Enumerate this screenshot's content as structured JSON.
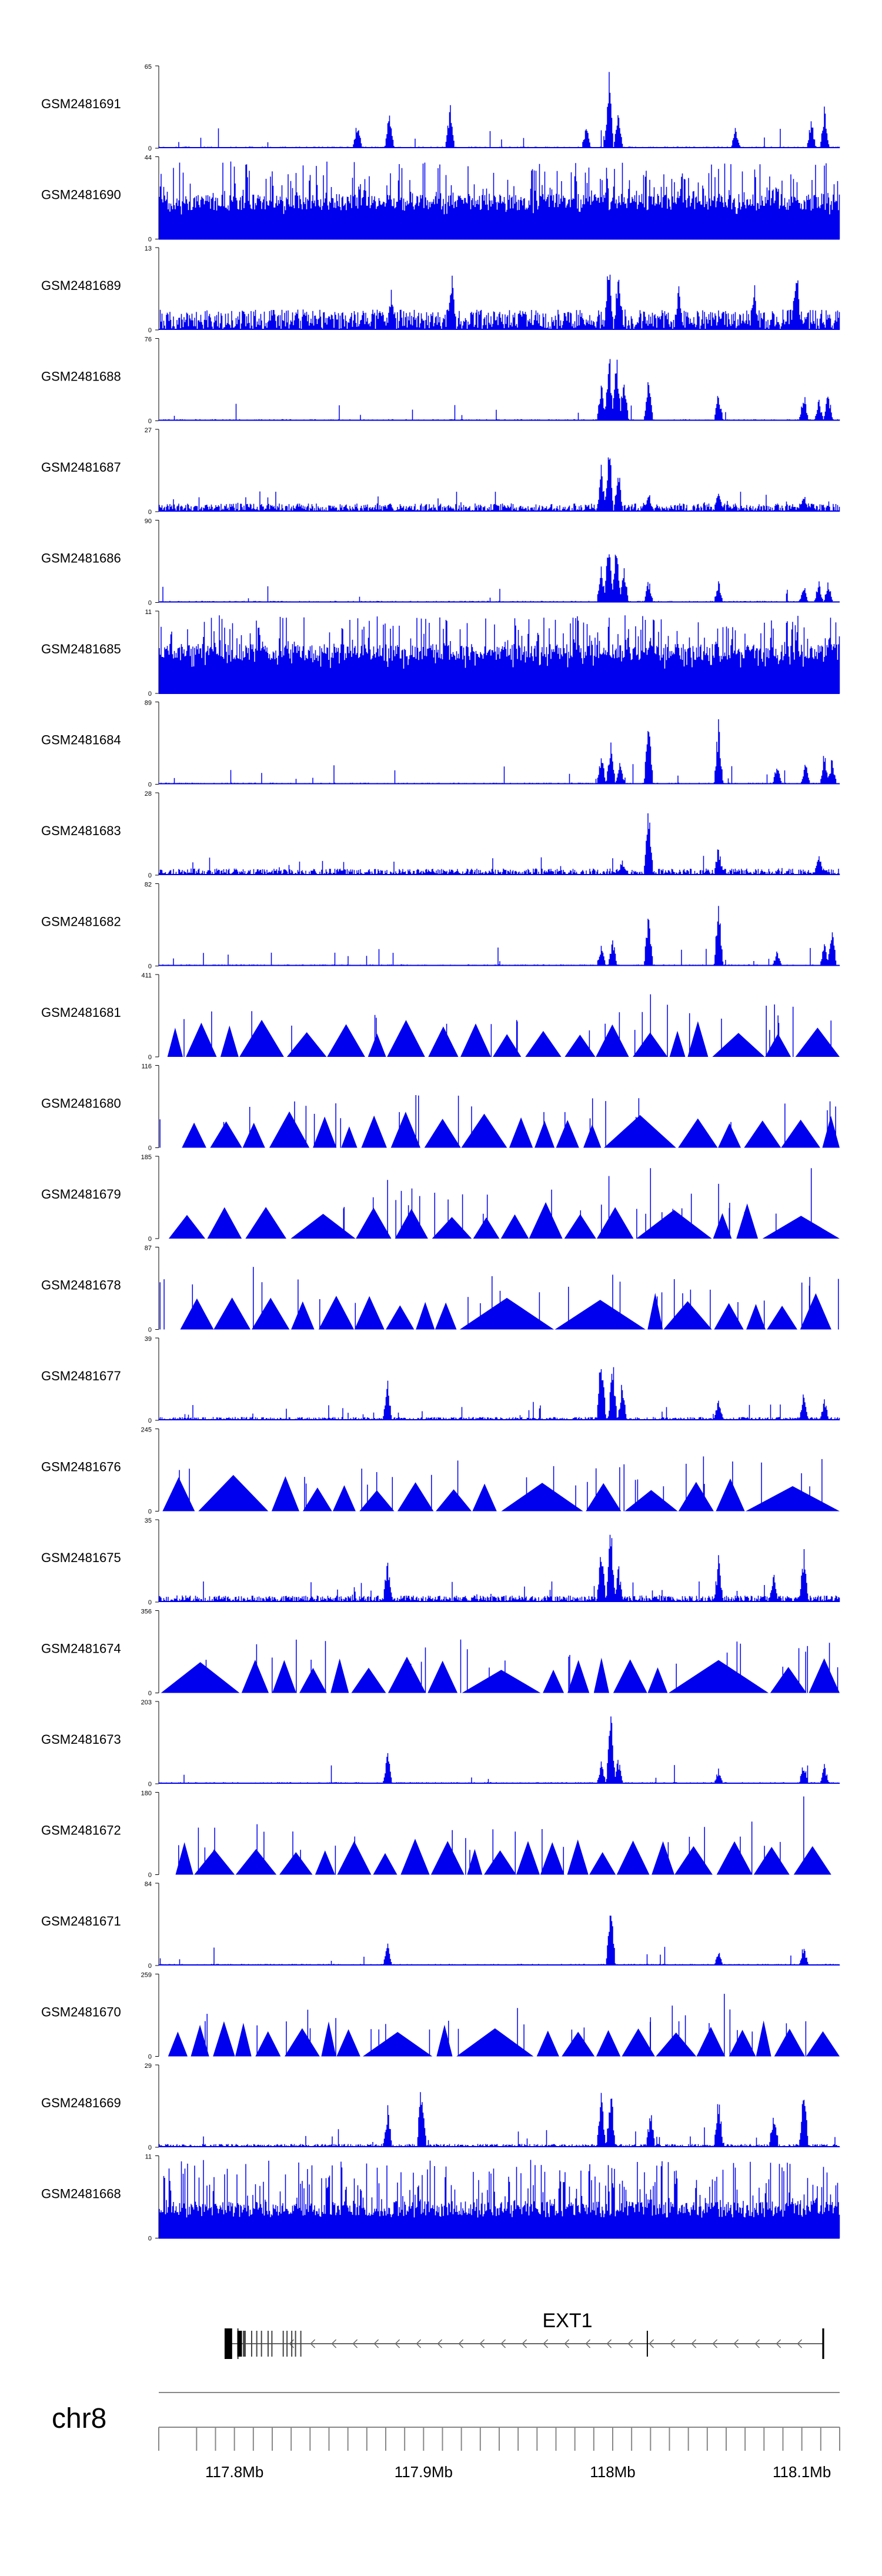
{
  "chart_data": {
    "type": "area",
    "title": "",
    "colors": {
      "signal": "#0000ee",
      "axis": "#000000",
      "gene": "#000000",
      "ruler": "#888888"
    },
    "region": {
      "chromosome": "chr8",
      "start_mb": 117.76,
      "end_mb": 118.12
    },
    "tracks": [
      {
        "name": "GSM2481691",
        "ymin": "0",
        "ymax": "65",
        "style": "dense",
        "density": 0.35,
        "base": 0.02,
        "seed": 11,
        "peaks": [
          [
            117.865,
            0.38
          ],
          [
            117.882,
            0.5
          ],
          [
            117.914,
            0.6
          ],
          [
            117.986,
            0.3
          ],
          [
            117.998,
            1.0
          ],
          [
            118.003,
            0.6
          ],
          [
            118.065,
            0.28
          ],
          [
            118.105,
            0.4
          ],
          [
            118.112,
            0.55
          ]
        ]
      },
      {
        "name": "GSM2481690",
        "ymin": "0",
        "ymax": "44",
        "style": "tall",
        "density": 0.9,
        "base": 0.35,
        "seed": 12,
        "peaks": [
          [
            117.823,
            0.6
          ],
          [
            117.869,
            0.75
          ],
          [
            118.028,
            0.5
          ],
          [
            118.087,
            1.0
          ]
        ]
      },
      {
        "name": "GSM2481689",
        "ymin": "0",
        "ymax": "13",
        "style": "dense",
        "density": 1.0,
        "base": 0.25,
        "seed": 13,
        "peaks": [
          [
            117.883,
            0.5
          ],
          [
            117.915,
            0.7
          ],
          [
            117.998,
            1.0
          ],
          [
            118.003,
            0.85
          ],
          [
            118.035,
            0.6
          ],
          [
            118.075,
            0.6
          ],
          [
            118.097,
            1.0
          ]
        ]
      },
      {
        "name": "GSM2481688",
        "ymin": "0",
        "ymax": "76",
        "style": "dense",
        "density": 0.35,
        "base": 0.02,
        "seed": 14,
        "peaks": [
          [
            117.994,
            0.55
          ],
          [
            117.998,
            1.0
          ],
          [
            118.002,
            0.9
          ],
          [
            118.006,
            0.7
          ],
          [
            118.019,
            0.55
          ],
          [
            118.056,
            0.4
          ],
          [
            118.101,
            0.4
          ],
          [
            118.109,
            0.3
          ],
          [
            118.114,
            0.38
          ]
        ]
      },
      {
        "name": "GSM2481687",
        "ymin": "0",
        "ymax": "27",
        "style": "dense",
        "density": 0.7,
        "base": 0.1,
        "seed": 15,
        "peaks": [
          [
            117.994,
            0.6
          ],
          [
            117.998,
            1.0
          ],
          [
            118.003,
            0.6
          ],
          [
            118.019,
            0.3
          ],
          [
            118.056,
            0.3
          ],
          [
            118.101,
            0.3
          ]
        ]
      },
      {
        "name": "GSM2481686",
        "ymin": "0",
        "ymax": "90",
        "style": "dense",
        "density": 0.35,
        "base": 0.02,
        "seed": 16,
        "peaks": [
          [
            117.994,
            0.5
          ],
          [
            117.998,
            1.0
          ],
          [
            118.002,
            0.8
          ],
          [
            118.006,
            0.5
          ],
          [
            118.019,
            0.3
          ],
          [
            118.056,
            0.3
          ],
          [
            118.101,
            0.25
          ],
          [
            118.109,
            0.28
          ],
          [
            118.114,
            0.3
          ]
        ]
      },
      {
        "name": "GSM2481685",
        "ymin": "0",
        "ymax": "11",
        "style": "tall",
        "density": 1.0,
        "base": 0.4,
        "seed": 17,
        "peaks": [
          [
            117.998,
            1.0
          ],
          [
            118.02,
            0.8
          ],
          [
            118.055,
            1.0
          ],
          [
            118.1,
            0.7
          ],
          [
            118.112,
            0.8
          ]
        ]
      },
      {
        "name": "GSM2481684",
        "ymin": "0",
        "ymax": "89",
        "style": "dense",
        "density": 0.35,
        "base": 0.02,
        "seed": 18,
        "peaks": [
          [
            117.994,
            0.45
          ],
          [
            117.999,
            0.6
          ],
          [
            118.004,
            0.3
          ],
          [
            118.019,
            1.0
          ],
          [
            118.056,
            0.85
          ],
          [
            118.087,
            0.28
          ],
          [
            118.102,
            0.28
          ],
          [
            118.112,
            0.45
          ],
          [
            118.116,
            0.35
          ]
        ]
      },
      {
        "name": "GSM2481683",
        "ymin": "0",
        "ymax": "28",
        "style": "dense",
        "density": 0.6,
        "base": 0.08,
        "seed": 19,
        "peaks": [
          [
            118.019,
            1.0
          ],
          [
            118.056,
            0.4
          ],
          [
            118.005,
            0.2
          ],
          [
            118.109,
            0.3
          ]
        ]
      },
      {
        "name": "GSM2481682",
        "ymin": "0",
        "ymax": "82",
        "style": "dense",
        "density": 0.35,
        "base": 0.02,
        "seed": 20,
        "peaks": [
          [
            117.994,
            0.3
          ],
          [
            118.0,
            0.4
          ],
          [
            118.019,
            0.8
          ],
          [
            118.056,
            0.95
          ],
          [
            118.087,
            0.2
          ],
          [
            118.112,
            0.3
          ],
          [
            118.116,
            0.5
          ]
        ]
      },
      {
        "name": "GSM2481681",
        "ymin": "0",
        "ymax": "411",
        "style": "tri",
        "density": 0,
        "base": 0,
        "seed": 21,
        "peaks": [
          [
            117.875,
            0.5
          ],
          [
            118.02,
            0.8
          ]
        ]
      },
      {
        "name": "GSM2481680",
        "ymin": "0",
        "ymax": "116",
        "style": "tri",
        "density": 0,
        "base": 0,
        "seed": 22,
        "peaks": []
      },
      {
        "name": "GSM2481679",
        "ymin": "0",
        "ymax": "185",
        "style": "tri",
        "density": 0,
        "base": 0,
        "seed": 23,
        "peaks": [
          [
            117.881,
            0.75
          ],
          [
            117.913,
            0.5
          ],
          [
            117.998,
            0.8
          ],
          [
            118.02,
            0.9
          ],
          [
            118.056,
            0.7
          ],
          [
            118.105,
            0.9
          ]
        ]
      },
      {
        "name": "GSM2481678",
        "ymin": "0",
        "ymax": "87",
        "style": "tri",
        "density": 0,
        "base": 0,
        "seed": 24,
        "peaks": [
          [
            117.81,
            0.8
          ],
          [
            118.0,
            0.7
          ],
          [
            118.1,
            0.6
          ]
        ]
      },
      {
        "name": "GSM2481677",
        "ymin": "0",
        "ymax": "39",
        "style": "dense",
        "density": 0.5,
        "base": 0.04,
        "seed": 25,
        "peaks": [
          [
            117.881,
            0.5
          ],
          [
            117.994,
            1.0
          ],
          [
            118.0,
            0.8
          ],
          [
            118.005,
            0.5
          ],
          [
            118.056,
            0.3
          ],
          [
            118.101,
            0.4
          ],
          [
            118.112,
            0.3
          ]
        ]
      },
      {
        "name": "GSM2481676",
        "ymin": "0",
        "ymax": "245",
        "style": "tri",
        "density": 0,
        "base": 0,
        "seed": 26,
        "peaks": [
          [
            118.006,
            0.6
          ],
          [
            118.012,
            0.4
          ],
          [
            118.048,
            0.7
          ]
        ]
      },
      {
        "name": "GSM2481675",
        "ymin": "0",
        "ymax": "35",
        "style": "dense",
        "density": 0.6,
        "base": 0.08,
        "seed": 27,
        "peaks": [
          [
            117.881,
            0.6
          ],
          [
            117.994,
            0.8
          ],
          [
            117.999,
            1.0
          ],
          [
            118.003,
            0.5
          ],
          [
            118.056,
            0.6
          ],
          [
            118.085,
            0.4
          ],
          [
            118.101,
            0.7
          ]
        ]
      },
      {
        "name": "GSM2481674",
        "ymin": "0",
        "ymax": "356",
        "style": "tri",
        "density": 0,
        "base": 0,
        "seed": 28,
        "peaks": [
          [
            118.103,
            0.6
          ]
        ]
      },
      {
        "name": "GSM2481673",
        "ymin": "0",
        "ymax": "203",
        "style": "dense",
        "density": 0.3,
        "base": 0.02,
        "seed": 29,
        "peaks": [
          [
            117.881,
            0.45
          ],
          [
            117.994,
            0.3
          ],
          [
            117.999,
            1.0
          ],
          [
            118.003,
            0.35
          ],
          [
            118.056,
            0.2
          ],
          [
            118.101,
            0.3
          ],
          [
            118.112,
            0.25
          ]
        ]
      },
      {
        "name": "GSM2481672",
        "ymin": "0",
        "ymax": "180",
        "style": "tri",
        "density": 0,
        "base": 0,
        "seed": 30,
        "peaks": [
          [
            118.101,
            1.0
          ]
        ]
      },
      {
        "name": "GSM2481671",
        "ymin": "0",
        "ymax": "84",
        "style": "dense",
        "density": 0.3,
        "base": 0.02,
        "seed": 31,
        "peaks": [
          [
            117.881,
            0.3
          ],
          [
            117.999,
            1.0
          ],
          [
            118.056,
            0.2
          ],
          [
            118.101,
            0.3
          ]
        ]
      },
      {
        "name": "GSM2481670",
        "ymin": "0",
        "ymax": "259",
        "style": "tri",
        "density": 0,
        "base": 0,
        "seed": 32,
        "peaks": [
          [
            118.02,
            0.5
          ],
          [
            118.035,
            0.45
          ],
          [
            118.059,
            0.8
          ],
          [
            118.062,
            0.6
          ]
        ]
      },
      {
        "name": "GSM2481669",
        "ymin": "0",
        "ymax": "29",
        "style": "dense",
        "density": 0.5,
        "base": 0.04,
        "seed": 33,
        "peaks": [
          [
            117.881,
            0.55
          ],
          [
            117.899,
            1.0
          ],
          [
            117.994,
            0.7
          ],
          [
            117.999,
            0.85
          ],
          [
            118.02,
            0.5
          ],
          [
            118.056,
            0.7
          ],
          [
            118.085,
            0.5
          ],
          [
            118.101,
            0.95
          ]
        ]
      },
      {
        "name": "GSM2481668",
        "ymin": "0",
        "ymax": "11",
        "style": "tall",
        "density": 1.0,
        "base": 0.25,
        "seed": 34,
        "peaks": []
      }
    ],
    "gene": {
      "name": "EXT1",
      "strand": "-",
      "start_mb": 117.795,
      "end_mb": 118.111,
      "exons_mb": [
        [
          117.7948,
          117.7988
        ],
        [
          117.8015,
          117.8022
        ],
        [
          117.8045,
          117.806
        ],
        [
          117.8088,
          117.8094
        ],
        [
          117.8115,
          117.812
        ],
        [
          117.814,
          117.8146
        ],
        [
          117.8175,
          117.818
        ],
        [
          117.8195,
          117.82
        ],
        [
          117.8255,
          117.826
        ],
        [
          117.8275,
          117.828
        ],
        [
          117.83,
          117.8305
        ],
        [
          117.832,
          117.8325
        ],
        [
          117.8348,
          117.8352
        ],
        [
          118.018,
          118.0185
        ],
        [
          118.1108,
          118.1118
        ]
      ],
      "tall_exons_mb": [
        [
          117.8015,
          117.8022
        ],
        [
          118.1108,
          118.1118
        ]
      ]
    },
    "axis": {
      "ticks_mb": [
        117.76,
        117.78,
        117.79,
        117.8,
        117.81,
        117.82,
        117.83,
        117.84,
        117.85,
        117.86,
        117.87,
        117.88,
        117.89,
        117.9,
        117.91,
        117.92,
        117.93,
        117.94,
        117.95,
        117.96,
        117.97,
        117.98,
        117.99,
        118.0,
        118.01,
        118.02,
        118.03,
        118.04,
        118.05,
        118.06,
        118.07,
        118.08,
        118.09,
        118.1,
        118.11,
        118.12
      ],
      "labels": [
        {
          "mb": 117.8,
          "text": "117.8Mb"
        },
        {
          "mb": 117.9,
          "text": "117.9Mb"
        },
        {
          "mb": 118.0,
          "text": "118Mb"
        },
        {
          "mb": 118.1,
          "text": "118.1Mb"
        }
      ]
    }
  }
}
